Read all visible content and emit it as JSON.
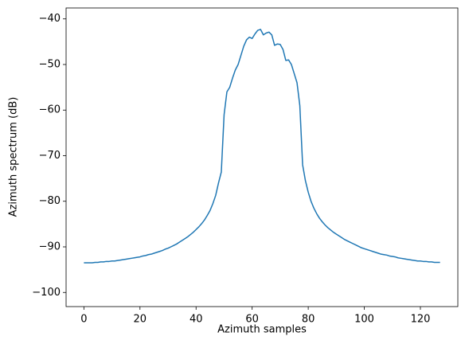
{
  "chart_data": {
    "type": "line",
    "x_label": "Azimuth samples",
    "y_label": "Azimuth spectrum (dB)",
    "x": [
      0,
      1,
      2,
      3,
      4,
      5,
      6,
      7,
      8,
      9,
      10,
      11,
      12,
      13,
      14,
      15,
      16,
      17,
      18,
      19,
      20,
      21,
      22,
      23,
      24,
      25,
      26,
      27,
      28,
      29,
      30,
      31,
      32,
      33,
      34,
      35,
      36,
      37,
      38,
      39,
      40,
      41,
      42,
      43,
      44,
      45,
      46,
      47,
      48,
      49,
      50,
      51,
      52,
      53,
      54,
      55,
      56,
      57,
      58,
      59,
      60,
      61,
      62,
      63,
      64,
      65,
      66,
      67,
      68,
      69,
      70,
      71,
      72,
      73,
      74,
      75,
      76,
      77,
      78,
      79,
      80,
      81,
      82,
      83,
      84,
      85,
      86,
      87,
      88,
      89,
      90,
      91,
      92,
      93,
      94,
      95,
      96,
      97,
      98,
      99,
      100,
      101,
      102,
      103,
      104,
      105,
      106,
      107,
      108,
      109,
      110,
      111,
      112,
      113,
      114,
      115,
      116,
      117,
      118,
      119,
      120,
      121,
      122,
      123,
      124,
      125,
      126,
      127
    ],
    "series": [
      {
        "color": "#1f77b4",
        "values": [
          -93.5,
          -93.5,
          -93.5,
          -93.5,
          -93.4,
          -93.4,
          -93.3,
          -93.3,
          -93.2,
          -93.2,
          -93.1,
          -93.1,
          -93.0,
          -92.9,
          -92.8,
          -92.7,
          -92.6,
          -92.5,
          -92.4,
          -92.3,
          -92.2,
          -92.0,
          -91.9,
          -91.7,
          -91.6,
          -91.4,
          -91.2,
          -91.0,
          -90.8,
          -90.5,
          -90.3,
          -90.0,
          -89.7,
          -89.4,
          -89.0,
          -88.6,
          -88.2,
          -87.8,
          -87.3,
          -86.8,
          -86.2,
          -85.6,
          -84.9,
          -84.1,
          -83.1,
          -82.0,
          -80.5,
          -78.7,
          -76.0,
          -73.6,
          -61,
          -56,
          -55,
          -53,
          -51.2,
          -50,
          -48,
          -46,
          -44.6,
          -44,
          -44.3,
          -43.3,
          -42.5,
          -42.3,
          -43.5,
          -43.1,
          -42.9,
          -43.5,
          -45.8,
          -45.5,
          -45.6,
          -46.7,
          -49.1,
          -49.0,
          -50,
          -52,
          -54,
          -59,
          -72,
          -75.5,
          -78,
          -80,
          -81.5,
          -82.7,
          -83.7,
          -84.5,
          -85.2,
          -85.8,
          -86.3,
          -86.8,
          -87.2,
          -87.6,
          -88.0,
          -88.4,
          -88.7,
          -89.0,
          -89.3,
          -89.6,
          -89.9,
          -90.2,
          -90.4,
          -90.6,
          -90.8,
          -91.0,
          -91.2,
          -91.4,
          -91.6,
          -91.7,
          -91.8,
          -92.0,
          -92.1,
          -92.2,
          -92.4,
          -92.5,
          -92.6,
          -92.7,
          -92.8,
          -92.9,
          -93.0,
          -93.1,
          -93.1,
          -93.2,
          -93.2,
          -93.3,
          -93.3,
          -93.4,
          -93.4,
          -93.4
        ]
      }
    ],
    "xlim": [
      -6.35,
      133.35
    ],
    "ylim": [
      -103.1,
      -37.6
    ],
    "xticks": [
      0,
      20,
      40,
      60,
      80,
      100,
      120
    ],
    "yticks": [
      {
        "value": -100,
        "label": "−100"
      },
      {
        "value": -90,
        "label": "−90"
      },
      {
        "value": -80,
        "label": "−80"
      },
      {
        "value": -70,
        "label": "−70"
      },
      {
        "value": -60,
        "label": "−60"
      },
      {
        "value": -50,
        "label": "−50"
      },
      {
        "value": -40,
        "label": "−40"
      }
    ]
  }
}
